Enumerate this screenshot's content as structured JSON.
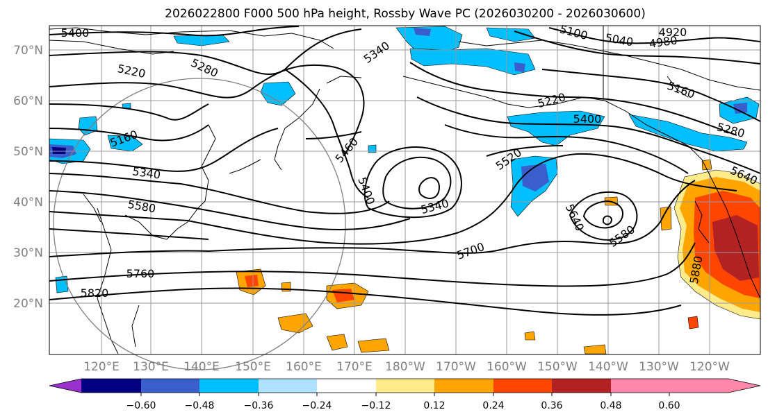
{
  "title": "2026022800 F000 500 hPa height, Rossby Wave PC (2026030200 - 2026030600)",
  "lat_labels": [
    "70°N",
    "60°N",
    "50°N",
    "40°N",
    "30°N",
    "20°N"
  ],
  "lon_labels": [
    "120°E",
    "130°E",
    "140°E",
    "150°E",
    "160°E",
    "170°E",
    "180°W",
    "170°W",
    "160°W",
    "150°W",
    "140°W",
    "130°W",
    "120°W"
  ],
  "contour_labels": [
    "5400",
    "5100",
    "5040",
    "4980",
    "4920",
    "5340",
    "5220",
    "5280",
    "5160",
    "5220",
    "5400",
    "5460",
    "5520",
    "5400",
    "5340",
    "5160",
    "5340",
    "5580",
    "5280",
    "5640",
    "5640",
    "5580",
    "5700",
    "5760",
    "5820",
    "5880"
  ],
  "colorbar": {
    "ticks": [
      "−0.60",
      "−0.48",
      "−0.36",
      "−0.24",
      "−0.12",
      "0.12",
      "0.24",
      "0.36",
      "0.48",
      "0.60"
    ],
    "colors": [
      "#9932cc",
      "#000080",
      "#3a5fcd",
      "#00bfff",
      "#b0e2ff",
      "#ffffff",
      "#ffeb8a",
      "#ffa500",
      "#ff4500",
      "#b22222",
      "#ff88aa"
    ]
  },
  "colors": {
    "grid": "#9a9a9a",
    "label": "#808080",
    "frame": "#000000"
  }
}
